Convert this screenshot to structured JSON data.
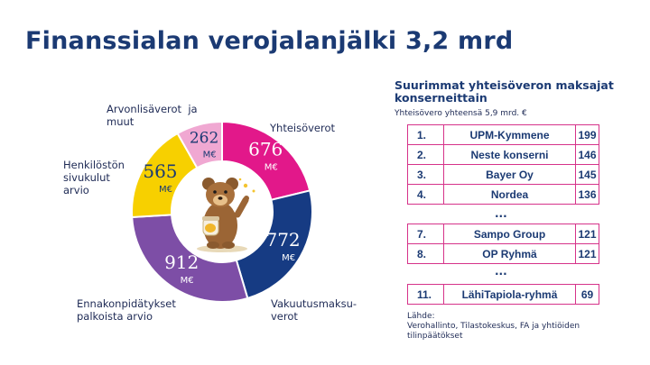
{
  "page": {
    "title": "Finanssialan verojalanjälki 3,2 mrd"
  },
  "chart_data": {
    "type": "pie",
    "style": "donut",
    "slices": [
      {
        "label": "Yhteisöverot",
        "value": 676,
        "unit": "M€",
        "color": "#e2188a"
      },
      {
        "label": "Vakuutusmaksu-\nverot",
        "value": 772,
        "unit": "M€",
        "color": "#163b83"
      },
      {
        "label": "Ennakonpidätykset\npalkoista arvio",
        "value": 912,
        "unit": "M€",
        "color": "#7d4ea6"
      },
      {
        "label": "Henkilöstön\nsivukulut\narvio",
        "value": 565,
        "unit": "M€",
        "color": "#f7d000"
      },
      {
        "label": "Arvonlisäverot  ja\nmuut",
        "value": 262,
        "unit": "M€",
        "color": "#f0a8d2"
      }
    ]
  },
  "ranking": {
    "title": "Suurimmat yhteisöveron maksajat konserneittain",
    "subtitle": "Yhteisövero yhteensä  5,9 mrd. €",
    "rows": [
      {
        "rank": "1.",
        "name": "UPM-Kymmene",
        "value": "199"
      },
      {
        "rank": "2.",
        "name": "Neste konserni",
        "value": "146"
      },
      {
        "rank": "3.",
        "name": "Bayer Oy",
        "value": "145"
      },
      {
        "rank": "4.",
        "name": "Nordea",
        "value": "136"
      },
      {
        "rank": "7.",
        "name": "Sampo Group",
        "value": "121"
      },
      {
        "rank": "8.",
        "name": "OP Ryhmä",
        "value": "121"
      },
      {
        "rank": "11.",
        "name": "LähiTapiola-ryhmä",
        "value": "69"
      }
    ],
    "ellipsis": "..."
  },
  "source": {
    "heading": "Lähde:",
    "text": "Verohallinto, Tilastokeskus, FA ja yhtiöiden tilinpäätökset"
  }
}
